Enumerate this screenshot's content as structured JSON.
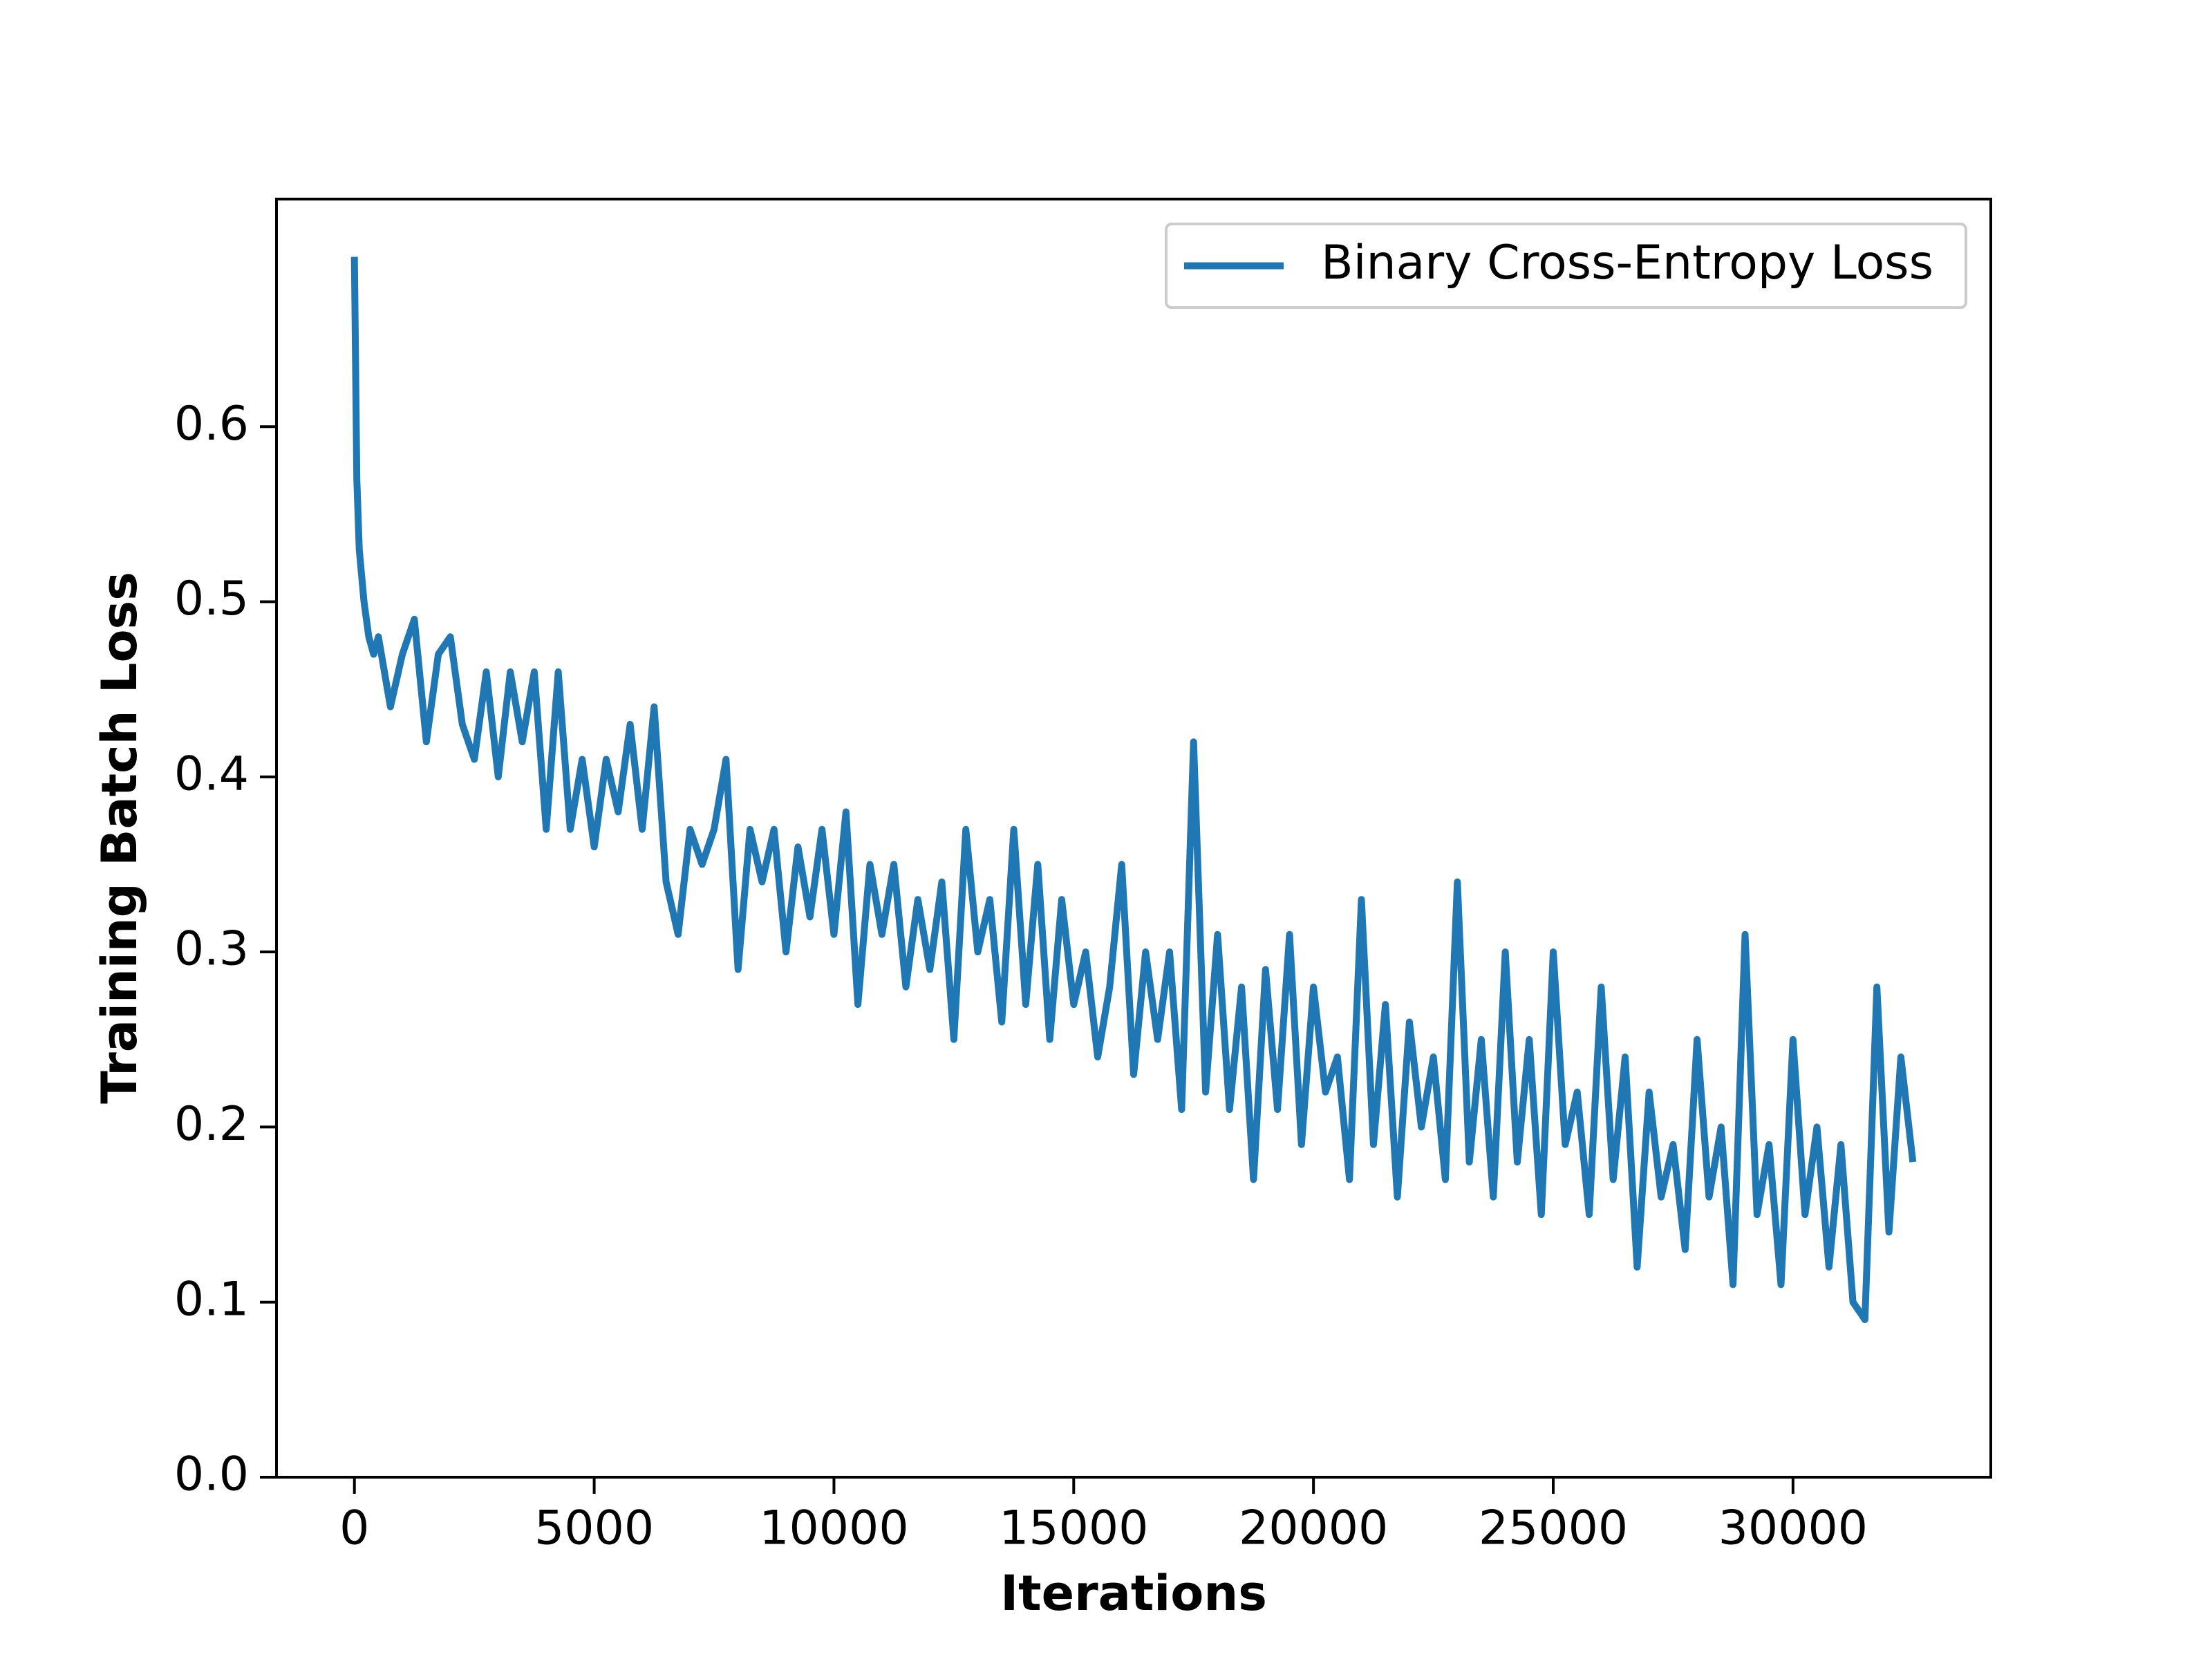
{
  "chart_data": {
    "type": "line",
    "xlabel": "Iterations",
    "ylabel": "Training Batch Loss",
    "x": [
      0,
      50,
      100,
      200,
      300,
      400,
      500,
      750,
      1000,
      1250,
      1500,
      1750,
      2000,
      2250,
      2500,
      2750,
      3000,
      3250,
      3500,
      3750,
      4000,
      4250,
      4500,
      4750,
      5000,
      5250,
      5500,
      5750,
      6000,
      6250,
      6500,
      6750,
      7000,
      7250,
      7500,
      7750,
      8000,
      8250,
      8500,
      8750,
      9000,
      9250,
      9500,
      9750,
      10000,
      10250,
      10500,
      10750,
      11000,
      11250,
      11500,
      11750,
      12000,
      12250,
      12500,
      12750,
      13000,
      13250,
      13500,
      13750,
      14000,
      14250,
      14500,
      14750,
      15000,
      15250,
      15500,
      15750,
      16000,
      16250,
      16500,
      16750,
      17000,
      17250,
      17500,
      17750,
      18000,
      18250,
      18500,
      18750,
      19000,
      19250,
      19500,
      19750,
      20000,
      20250,
      20500,
      20750,
      21000,
      21250,
      21500,
      21750,
      22000,
      22250,
      22500,
      22750,
      23000,
      23250,
      23500,
      23750,
      24000,
      24250,
      24500,
      24750,
      25000,
      25250,
      25500,
      25750,
      26000,
      26250,
      26500,
      26750,
      27000,
      27250,
      27500,
      27750,
      28000,
      28250,
      28500,
      28750,
      29000,
      29250,
      29500,
      29750,
      30000,
      30250,
      30500,
      30750,
      31000,
      31250,
      31500,
      31750,
      32000,
      32250,
      32500
    ],
    "series": [
      {
        "name": "Binary Cross-Entropy Loss",
        "color": "#1f77b4",
        "values": [
          0.697,
          0.57,
          0.53,
          0.5,
          0.48,
          0.47,
          0.48,
          0.44,
          0.47,
          0.49,
          0.42,
          0.47,
          0.48,
          0.43,
          0.41,
          0.46,
          0.4,
          0.46,
          0.42,
          0.46,
          0.37,
          0.46,
          0.37,
          0.41,
          0.36,
          0.41,
          0.38,
          0.43,
          0.37,
          0.44,
          0.34,
          0.31,
          0.37,
          0.35,
          0.37,
          0.41,
          0.29,
          0.37,
          0.34,
          0.37,
          0.3,
          0.36,
          0.32,
          0.37,
          0.31,
          0.38,
          0.27,
          0.35,
          0.31,
          0.35,
          0.28,
          0.33,
          0.29,
          0.34,
          0.25,
          0.37,
          0.3,
          0.33,
          0.26,
          0.37,
          0.27,
          0.35,
          0.25,
          0.33,
          0.27,
          0.3,
          0.24,
          0.28,
          0.35,
          0.23,
          0.3,
          0.25,
          0.3,
          0.21,
          0.42,
          0.22,
          0.31,
          0.21,
          0.28,
          0.17,
          0.29,
          0.21,
          0.31,
          0.19,
          0.28,
          0.22,
          0.24,
          0.17,
          0.33,
          0.19,
          0.27,
          0.16,
          0.26,
          0.2,
          0.24,
          0.17,
          0.34,
          0.18,
          0.25,
          0.16,
          0.3,
          0.18,
          0.25,
          0.15,
          0.3,
          0.19,
          0.22,
          0.15,
          0.28,
          0.17,
          0.24,
          0.12,
          0.22,
          0.16,
          0.19,
          0.13,
          0.25,
          0.16,
          0.2,
          0.11,
          0.31,
          0.15,
          0.19,
          0.11,
          0.25,
          0.15,
          0.2,
          0.12,
          0.19,
          0.1,
          0.09,
          0.28,
          0.14,
          0.24,
          0.18
        ]
      }
    ],
    "xlim": [
      -1625,
      34125
    ],
    "ylim": [
      0,
      0.73
    ],
    "xticks": [
      0,
      5000,
      10000,
      15000,
      20000,
      25000,
      30000
    ],
    "yticks": [
      {
        "value": 0,
        "label": "0.0"
      },
      0.1,
      0.2,
      0.3,
      0.4,
      0.5,
      0.6
    ],
    "legend": "upper right"
  }
}
